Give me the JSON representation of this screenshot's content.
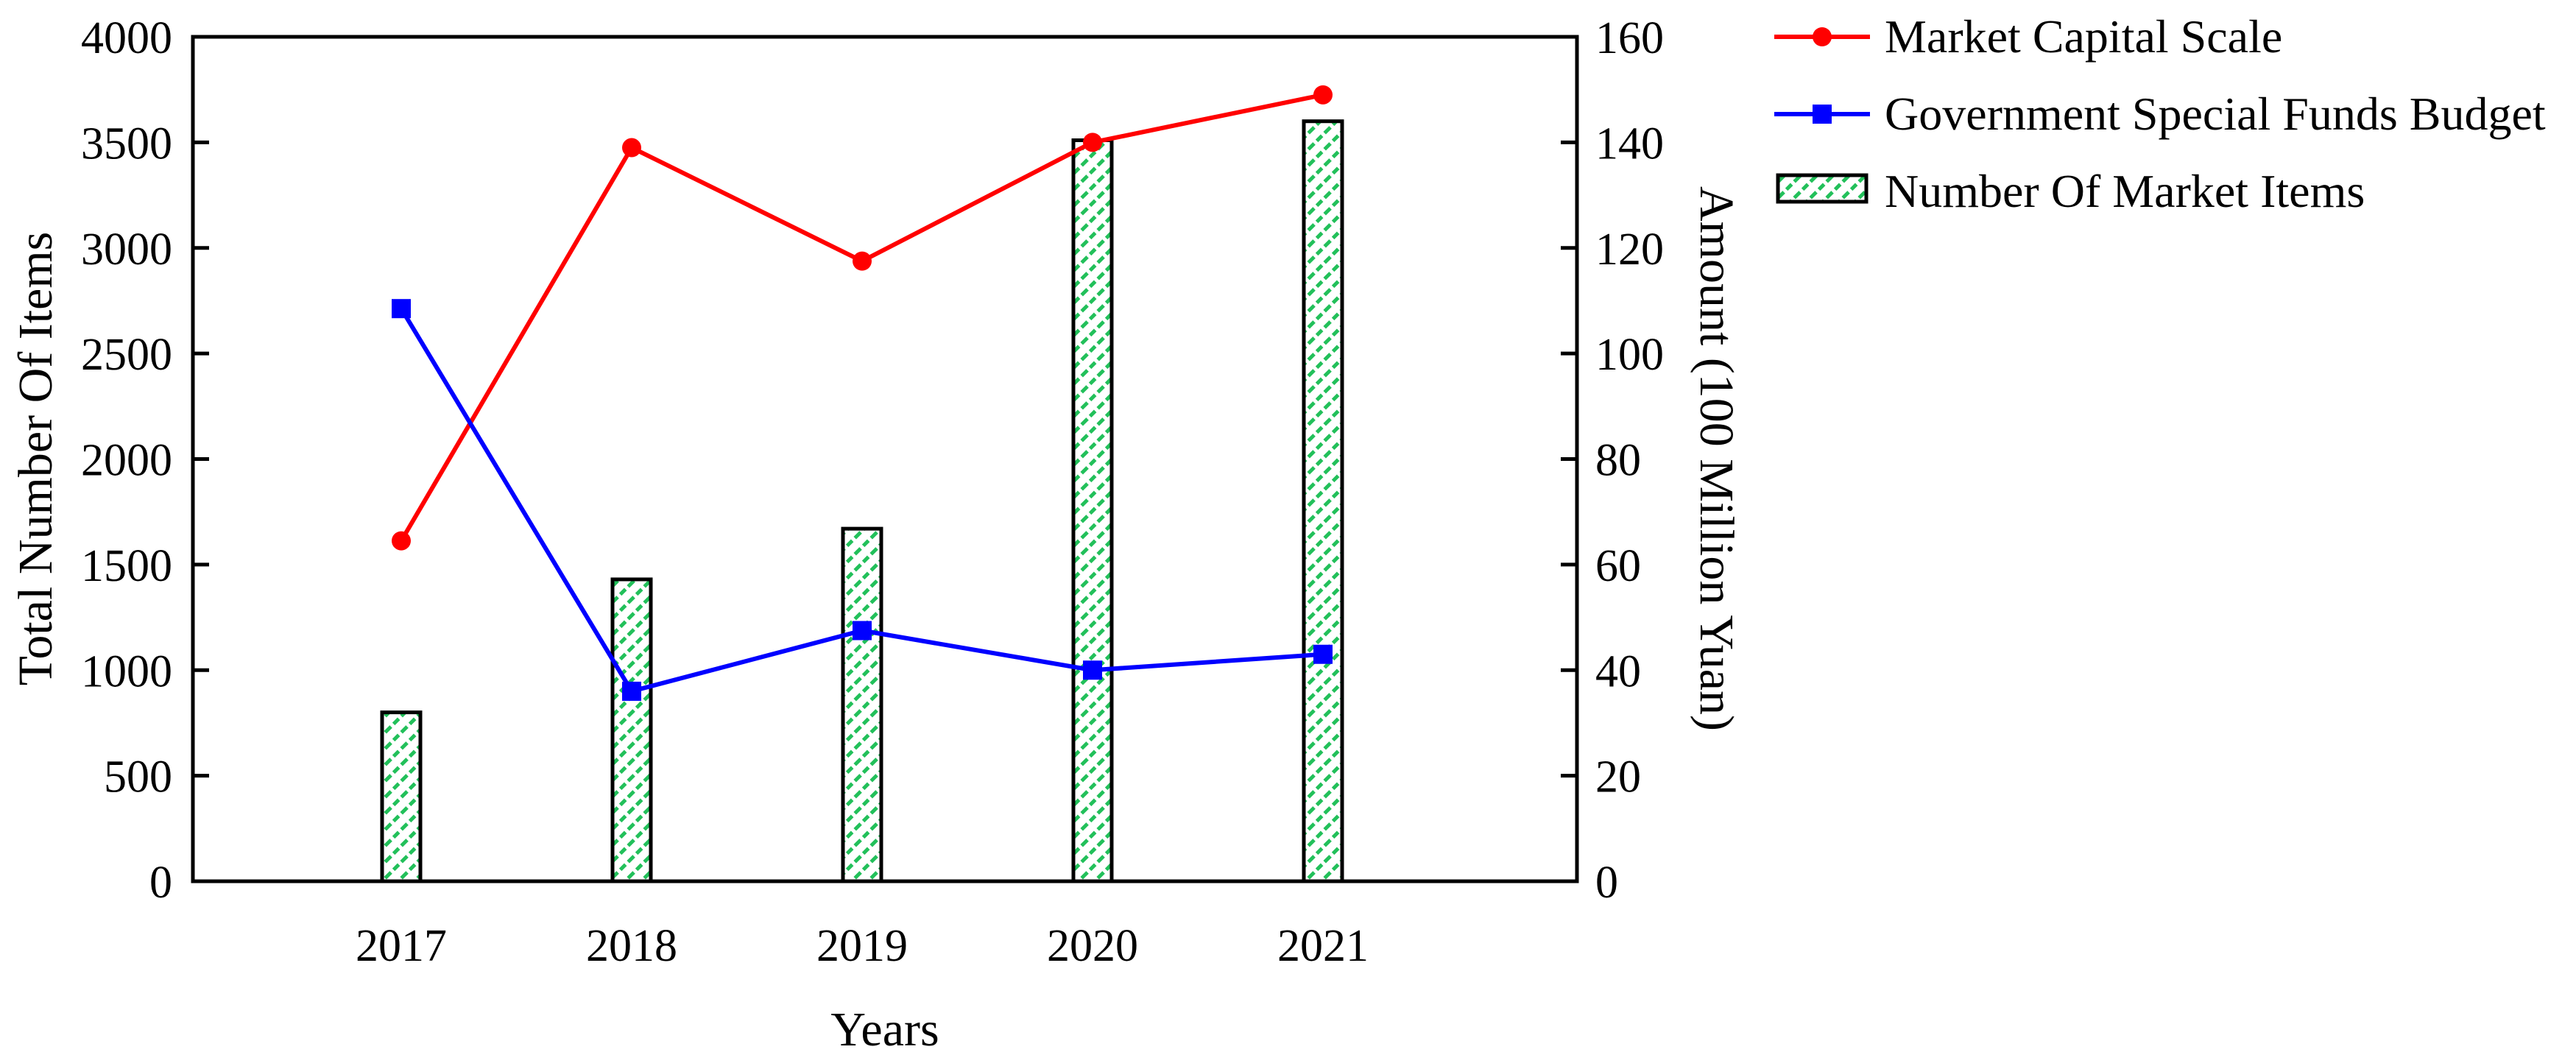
{
  "chart_data": {
    "type": "bar",
    "title": "",
    "categories": [
      "2017",
      "2018",
      "2019",
      "2020",
      "2021"
    ],
    "xlabel": "Years",
    "ylabel_left": "Total Number Of Items",
    "ylabel_right": "Amount (100 Million Yuan)",
    "ylim_left": [
      0,
      4000
    ],
    "ylim_right": [
      0,
      160
    ],
    "yticks_left": [
      0,
      500,
      1000,
      1500,
      2000,
      2500,
      3000,
      3500,
      4000
    ],
    "yticks_right": [
      0,
      20,
      40,
      60,
      80,
      100,
      120,
      140,
      160
    ],
    "grid": false,
    "legend_position": "top-right",
    "series": [
      {
        "name": "Market Capital Scale",
        "kind": "line",
        "axis": "right",
        "color": "#ff0000",
        "marker": "circle",
        "values": [
          64.5,
          139,
          117.5,
          140,
          149
        ]
      },
      {
        "name": "Government Special Funds Budget",
        "kind": "line",
        "axis": "right",
        "color": "#0000ff",
        "marker": "square",
        "values": [
          108.5,
          36,
          47.5,
          40,
          43
        ]
      },
      {
        "name": "Number Of Market Items",
        "kind": "bar",
        "axis": "left",
        "color": "#22c05a",
        "pattern": "diagonal-hatch",
        "values": [
          800,
          1430,
          1670,
          3510,
          3600
        ]
      }
    ]
  }
}
